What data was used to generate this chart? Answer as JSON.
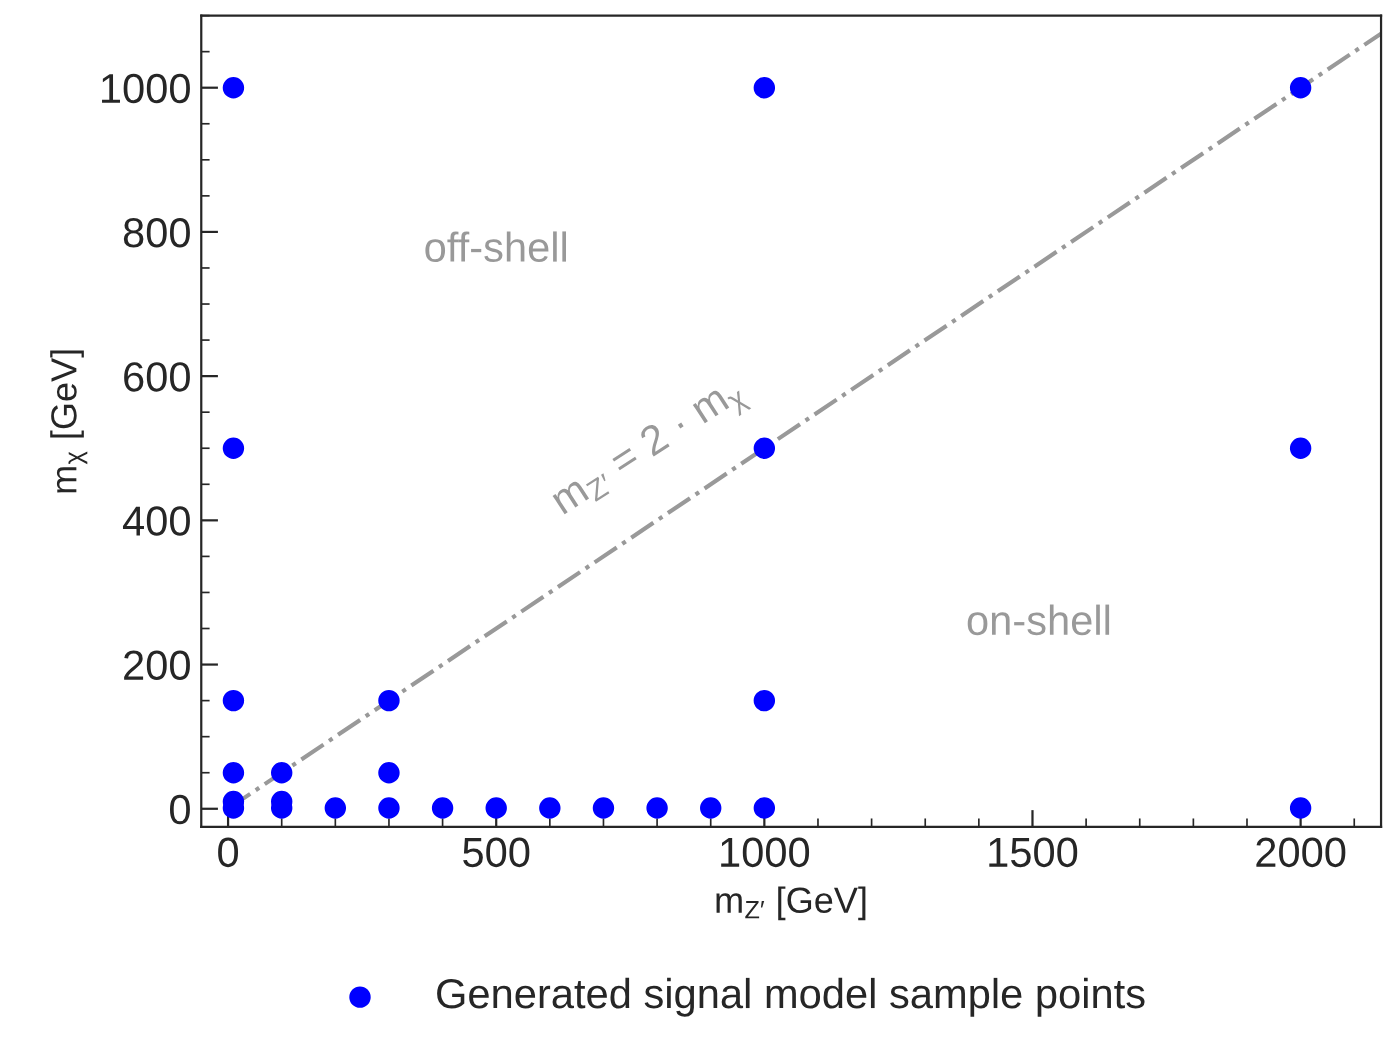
{
  "chart_data": {
    "type": "scatter",
    "xlabel": "m$_{Z′}$ [GeV]",
    "ylabel": "m$_{χ}$ [GeV]",
    "xlim": [
      -50,
      2150
    ],
    "ylim": [
      -25,
      1100
    ],
    "xticks": [
      0,
      500,
      1000,
      1500,
      2000
    ],
    "yticks": [
      0,
      200,
      400,
      600,
      800,
      1000
    ],
    "grid": false,
    "legend": "bottom",
    "marker": "circle",
    "series": [
      {
        "name": "Generated signal model sample points",
        "color": "#0000ff",
        "x": [
          10,
          10,
          10,
          10,
          10,
          10,
          100,
          100,
          100,
          200,
          300,
          300,
          300,
          400,
          500,
          600,
          700,
          800,
          900,
          1000,
          1000,
          1000,
          1000,
          2000,
          2000,
          2000
        ],
        "values": [
          1000,
          500,
          150,
          50,
          10,
          1,
          50,
          10,
          1,
          1,
          150,
          50,
          1,
          1,
          1,
          1,
          1,
          1,
          1,
          1000,
          500,
          150,
          1,
          1000,
          500,
          1
        ]
      },
      {
        "type": "line",
        "name": "m$_{Z′}$ = 2 · m$_{χ}$",
        "color": "#999999",
        "line_style": "dashdot",
        "marker": "none",
        "x": [
          0,
          2150
        ],
        "values": [
          0,
          1075
        ]
      }
    ],
    "annotations": [
      "off-shell",
      "on-shell"
    ]
  }
}
